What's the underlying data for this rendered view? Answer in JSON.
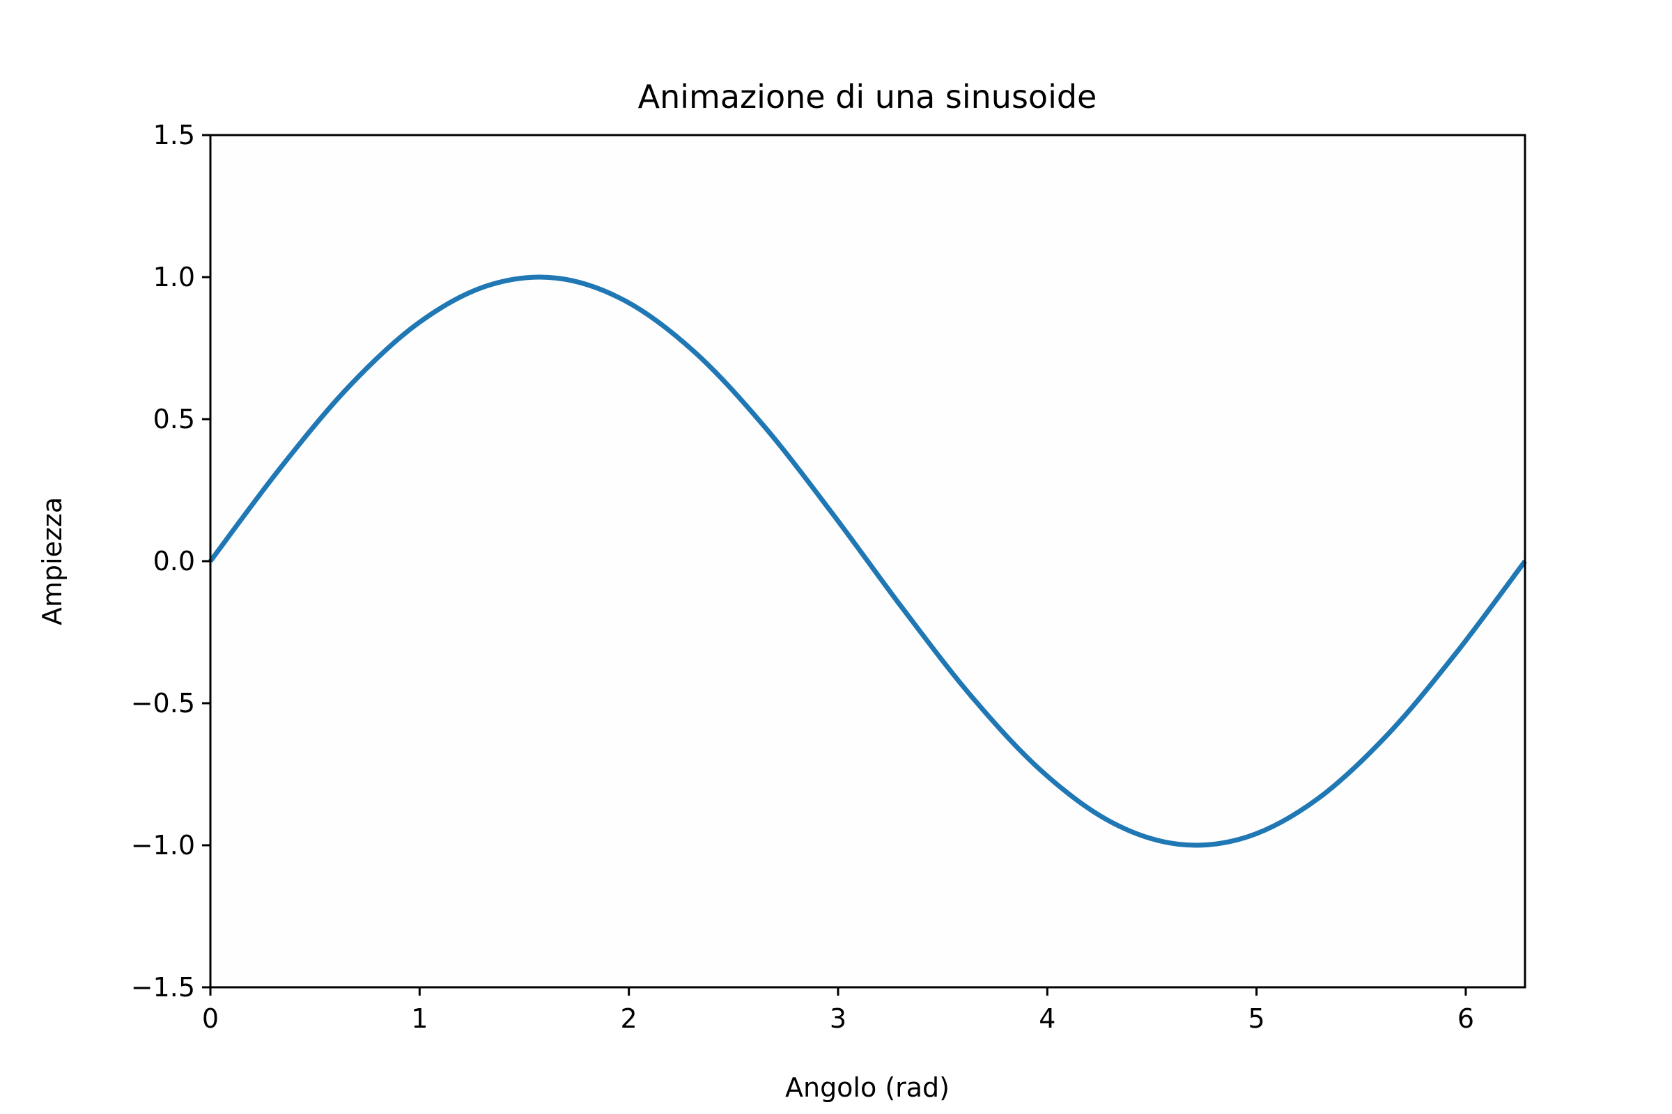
{
  "chart_data": {
    "type": "line",
    "title": "Animazione di una sinusoide",
    "xlabel": "Angolo (rad)",
    "ylabel": "Ampiezza",
    "xlim": [
      0,
      6.283185307179586
    ],
    "ylim": [
      -1.5,
      1.5
    ],
    "x_ticks": [
      0,
      1,
      2,
      3,
      4,
      5,
      6
    ],
    "x_tick_labels": [
      "0",
      "1",
      "2",
      "3",
      "4",
      "5",
      "6"
    ],
    "y_ticks": [
      -1.5,
      -1.0,
      -0.5,
      0.0,
      0.5,
      1.0,
      1.5
    ],
    "y_tick_labels": [
      "−1.5",
      "−1.0",
      "−0.5",
      "0.0",
      "0.5",
      "1.0",
      "1.5"
    ],
    "grid": false,
    "series": [
      {
        "color": "#1f77b4",
        "x": [
          0,
          0.3307,
          0.6614,
          0.9921,
          1.3228,
          1.6535,
          1.9842,
          2.3149,
          2.6456,
          2.9762,
          3.3069,
          3.6376,
          3.9683,
          4.299,
          4.6297,
          4.9604,
          5.2911,
          5.6218,
          5.9525,
          6.2832
        ],
        "y": [
          0,
          0.3247,
          0.6142,
          0.8372,
          0.9694,
          0.9966,
          0.9158,
          0.7357,
          0.4759,
          0.1646,
          -0.1646,
          -0.4759,
          -0.7357,
          -0.9158,
          -0.9966,
          -0.9694,
          -0.8372,
          -0.6142,
          -0.3247,
          0
        ]
      }
    ]
  }
}
